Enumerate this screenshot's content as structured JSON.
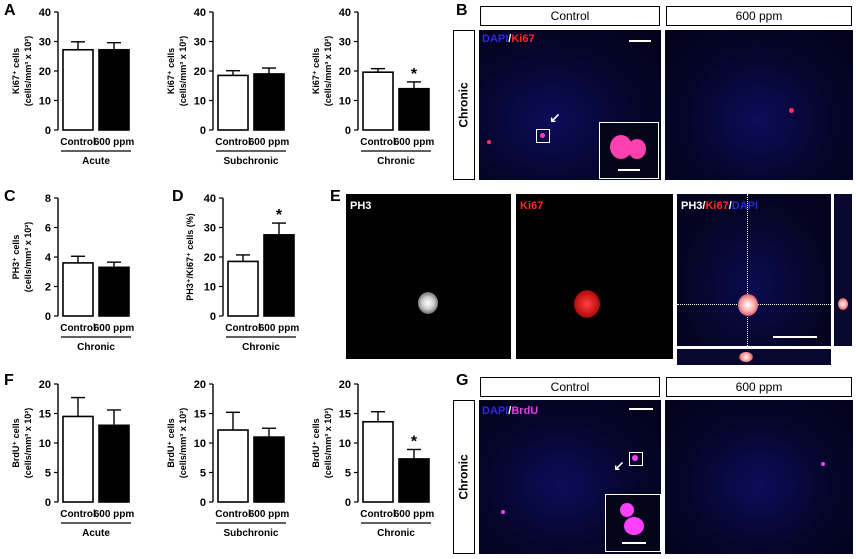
{
  "panel_letters": {
    "A": "A",
    "B": "B",
    "C": "C",
    "D": "D",
    "E": "E",
    "F": "F",
    "G": "G"
  },
  "chart_data": [
    {
      "id": "A1",
      "type": "bar",
      "categories": [
        "Control",
        "600 ppm"
      ],
      "values": [
        27.2,
        27.2
      ],
      "errors": [
        2.7,
        2.4
      ],
      "ylabel_line1": "Ki67⁺ cells",
      "ylabel_line2": "(cells/mm³ x 10²)",
      "ylim": [
        0,
        40
      ],
      "yticks": [
        0,
        10,
        20,
        30,
        40
      ],
      "group_label": "Acute",
      "significant": [
        false,
        false
      ],
      "colors": [
        "#ffffff",
        "#000000"
      ]
    },
    {
      "id": "A2",
      "type": "bar",
      "categories": [
        "Control",
        "600 ppm"
      ],
      "values": [
        18.5,
        19.0
      ],
      "errors": [
        1.6,
        2.0
      ],
      "ylabel_line1": "Ki67⁺ cells",
      "ylabel_line2": "(cells/mm³ x 10²)",
      "ylim": [
        0,
        40
      ],
      "yticks": [
        0,
        10,
        20,
        30,
        40
      ],
      "group_label": "Subchronic",
      "significant": [
        false,
        false
      ],
      "colors": [
        "#ffffff",
        "#000000"
      ]
    },
    {
      "id": "A3",
      "type": "bar",
      "categories": [
        "Control",
        "600 ppm"
      ],
      "values": [
        19.6,
        14.0
      ],
      "errors": [
        1.2,
        2.3
      ],
      "ylabel_line1": "Ki67⁺ cells",
      "ylabel_line2": "(cells/mm³ x 10²)",
      "ylim": [
        0,
        40
      ],
      "yticks": [
        0,
        10,
        20,
        30,
        40
      ],
      "group_label": "Chronic",
      "significant": [
        false,
        true
      ],
      "colors": [
        "#ffffff",
        "#000000"
      ]
    },
    {
      "id": "C",
      "type": "bar",
      "categories": [
        "Control",
        "600 ppm"
      ],
      "values": [
        3.6,
        3.3
      ],
      "errors": [
        0.45,
        0.35
      ],
      "ylabel_line1": "PH3⁺ cells",
      "ylabel_line2": "(cells/mm³ x 10²)",
      "ylim": [
        0,
        8
      ],
      "yticks": [
        0,
        2,
        4,
        6,
        8
      ],
      "group_label": "Chronic",
      "significant": [
        false,
        false
      ],
      "colors": [
        "#ffffff",
        "#000000"
      ]
    },
    {
      "id": "D",
      "type": "bar",
      "categories": [
        "Control",
        "600 ppm"
      ],
      "values": [
        18.5,
        27.5
      ],
      "errors": [
        2.2,
        4.0
      ],
      "ylabel_line1": "PH3⁺/Ki67⁺ cells (%)",
      "ylabel_line2": "",
      "ylim": [
        0,
        40
      ],
      "yticks": [
        0,
        10,
        20,
        30,
        40
      ],
      "group_label": "Chronic",
      "significant": [
        false,
        true
      ],
      "colors": [
        "#ffffff",
        "#000000"
      ]
    },
    {
      "id": "F1",
      "type": "bar",
      "categories": [
        "Control",
        "600 ppm"
      ],
      "values": [
        14.5,
        13.0
      ],
      "errors": [
        3.2,
        2.6
      ],
      "ylabel_line1": "BrdU⁺ cells",
      "ylabel_line2": "(cells/mm³ x 10²)",
      "ylim": [
        0,
        20
      ],
      "yticks": [
        0,
        5,
        10,
        15,
        20
      ],
      "group_label": "Acute",
      "significant": [
        false,
        false
      ],
      "colors": [
        "#ffffff",
        "#000000"
      ]
    },
    {
      "id": "F2",
      "type": "bar",
      "categories": [
        "Control",
        "600 ppm"
      ],
      "values": [
        12.2,
        11.0
      ],
      "errors": [
        3.0,
        1.5
      ],
      "ylabel_line1": "BrdU⁺ cells",
      "ylabel_line2": "(cells/mm³ x 10²)",
      "ylim": [
        0,
        20
      ],
      "yticks": [
        0,
        5,
        10,
        15,
        20
      ],
      "group_label": "Subchronic",
      "significant": [
        false,
        false
      ],
      "colors": [
        "#ffffff",
        "#000000"
      ]
    },
    {
      "id": "F3",
      "type": "bar",
      "categories": [
        "Control",
        "600 ppm"
      ],
      "values": [
        13.6,
        7.3
      ],
      "errors": [
        1.7,
        1.6
      ],
      "ylabel_line1": "BrdU⁺ cells",
      "ylabel_line2": "(cells/mm³ x 10²)",
      "ylim": [
        0,
        20
      ],
      "yticks": [
        0,
        5,
        10,
        15,
        20
      ],
      "group_label": "Chronic",
      "significant": [
        false,
        true
      ],
      "colors": [
        "#ffffff",
        "#000000"
      ]
    }
  ],
  "asterisk": "*",
  "panelB": {
    "col1": "Control",
    "col2": "600 ppm",
    "row": "Chronic",
    "stain1": "DAPI",
    "sep": "/",
    "stain2": "Ki67",
    "dapi_color": "#2a2ae0",
    "stain2_color": "#ff2a2a"
  },
  "panelG": {
    "col1": "Control",
    "col2": "600 ppm",
    "row": "Chronic",
    "stain1": "DAPI",
    "sep": "/",
    "stain2": "BrdU",
    "dapi_color": "#2a2ae0",
    "stain2_color": "#e040e0"
  },
  "panelE": {
    "label1": "PH3",
    "label2": "Ki67",
    "merge_a": "PH3",
    "merge_b": "Ki67",
    "merge_c": "DAPI",
    "sep": "/",
    "ph3_color": "#ffffff",
    "ki67_color": "#ff2a2a",
    "dapi_color": "#2a2ae0"
  }
}
